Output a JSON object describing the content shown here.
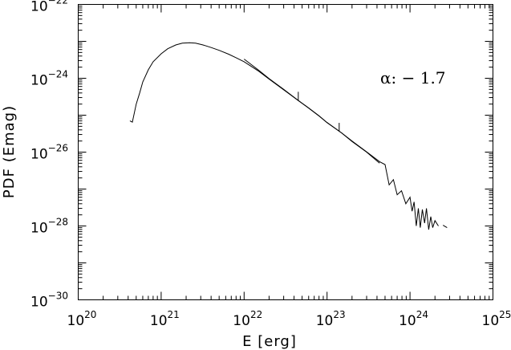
{
  "chart_data": {
    "type": "line",
    "title": "",
    "xlabel": "E [erg]",
    "ylabel": "PDF (Emag)",
    "xscale": "log",
    "yscale": "log",
    "xlim": [
      1e+20,
      1e+25
    ],
    "ylim": [
      1e-30,
      1e-22
    ],
    "grid": false,
    "x_ticks": [
      {
        "base": "10",
        "exp": "20"
      },
      {
        "base": "10",
        "exp": "21"
      },
      {
        "base": "10",
        "exp": "22"
      },
      {
        "base": "10",
        "exp": "23"
      },
      {
        "base": "10",
        "exp": "24"
      },
      {
        "base": "10",
        "exp": "25"
      }
    ],
    "y_ticks": [
      {
        "base": "10",
        "exp": "−30"
      },
      {
        "base": "10",
        "exp": "−28"
      },
      {
        "base": "10",
        "exp": "−26"
      },
      {
        "base": "10",
        "exp": "−24"
      },
      {
        "base": "10",
        "exp": "−22"
      }
    ],
    "annotation": "α: − 1.7",
    "series": [
      {
        "x": [
          4.2e+20,
          4.5e+20,
          5e+20,
          5.5e+20,
          6e+20,
          7e+20,
          8e+20,
          1e+21,
          1.2e+21,
          1.5e+21,
          1.8e+21,
          2.2e+21,
          2.6e+21,
          3.2e+21,
          4e+21,
          5e+21,
          6.5e+21,
          8e+21,
          1e+22,
          1.5e+22,
          2e+22,
          3e+22,
          4.5e+22,
          6e+22,
          8e+22,
          1e+23,
          1.5e+23,
          2e+23,
          3e+23,
          4.3e+23,
          5e+23,
          5.6e+23,
          6.3e+23,
          7e+23,
          7.9e+23,
          8.9e+23,
          1e+24,
          1.06e+24,
          1.12e+24,
          1.19e+24,
          1.26e+24,
          1.33e+24,
          1.41e+24,
          1.5e+24,
          1.58e+24,
          1.68e+24,
          1.78e+24,
          1.88e+24,
          2e+24,
          2.2e+24
        ],
        "y": [
          7e-26,
          6.5e-26,
          2e-25,
          4e-25,
          8e-25,
          1.7e-24,
          2.8e-24,
          4.6e-24,
          6.3e-24,
          8e-24,
          8.9e-24,
          9.2e-24,
          8.9e-24,
          8e-24,
          6.8e-24,
          5.7e-24,
          4.5e-24,
          3.6e-24,
          2.8e-24,
          1.55e-24,
          9.5e-25,
          4.9e-25,
          2.5e-25,
          1.55e-25,
          9.5e-26,
          6.3e-26,
          3.3e-26,
          2e-26,
          1.02e-26,
          5.5e-27,
          4.6e-27,
          1.3e-27,
          1.8e-27,
          7e-28,
          9e-28,
          4e-28,
          6e-28,
          2.5e-28,
          4.5e-28,
          1e-28,
          3e-28,
          9e-29,
          2.8e-28,
          1.2e-28,
          3e-28,
          8e-29,
          1.8e-28,
          9e-29,
          1.4e-28,
          1e-28
        ]
      },
      {
        "x": [
          1e+22,
          1.5e+22,
          2e+22,
          3e+22,
          4.5e+22,
          6e+22,
          8e+22,
          1e+23,
          1.5e+23,
          2e+23,
          3e+23,
          4.3e+23
        ],
        "y": [
          3.3e-24,
          1.65e-24,
          9.8e-25,
          5e-25,
          2.5e-25,
          1.57e-25,
          9.6e-26,
          6.3e-26,
          3.3e-26,
          1.95e-26,
          1e-26,
          5e-27
        ]
      }
    ],
    "fit_marks": [
      {
        "x": 4.5e+22,
        "y_from": 2.5e-25,
        "y_to": 4.3e-25
      },
      {
        "x": 1.4e+23,
        "y_from": 3.6e-26,
        "y_to": 6.2e-26
      }
    ],
    "tail_segment": {
      "x": [
        2.5e+24,
        2.8e+24
      ],
      "y": [
        1.05e-28,
        9e-29
      ]
    }
  }
}
